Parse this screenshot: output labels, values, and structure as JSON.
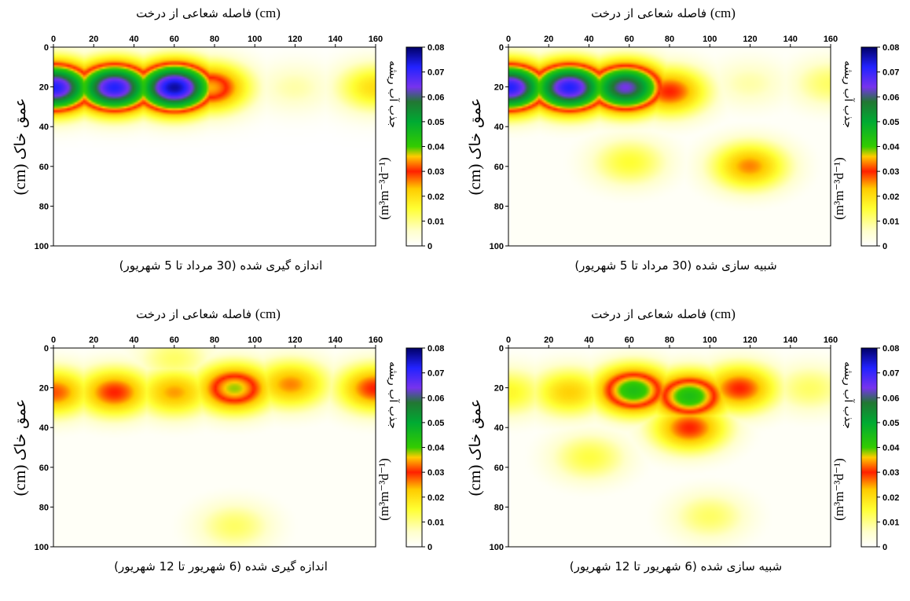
{
  "figure": {
    "colorbar": {
      "title": "جذب آب ریشه",
      "unit": "(m³m⁻³d⁻¹)",
      "ticks": [
        "0",
        "0.01",
        "0.02",
        "0.03",
        "0.04",
        "0.05",
        "0.06",
        "0.07",
        "0.08"
      ],
      "stops": [
        {
          "v": 0.0,
          "c": "#ffffff"
        },
        {
          "v": 0.006,
          "c": "#ffffcc"
        },
        {
          "v": 0.015,
          "c": "#ffff33"
        },
        {
          "v": 0.023,
          "c": "#ffcc00"
        },
        {
          "v": 0.03,
          "c": "#ff2000"
        },
        {
          "v": 0.036,
          "c": "#ffcc00"
        },
        {
          "v": 0.04,
          "c": "#33cc00"
        },
        {
          "v": 0.05,
          "c": "#00aa33"
        },
        {
          "v": 0.058,
          "c": "#227733"
        },
        {
          "v": 0.064,
          "c": "#7733ee"
        },
        {
          "v": 0.072,
          "c": "#2222ff"
        },
        {
          "v": 0.08,
          "c": "#000066"
        }
      ]
    }
  },
  "chart_data": [
    {
      "type": "heatmap",
      "title": "",
      "xlabel": "فاصله شعاعی از درخت",
      "xunit": "(cm)",
      "ylabel": "عمق خاک",
      "yunit": "(cm)",
      "caption": "اندازه گیری شده (30 مرداد تا 5 شهریور)",
      "xlim": [
        0,
        160
      ],
      "ylim": [
        100,
        0
      ],
      "xticks": [
        "0",
        "20",
        "40",
        "60",
        "80",
        "100",
        "120",
        "140",
        "160"
      ],
      "yticks": [
        "0",
        "20",
        "40",
        "60",
        "80",
        "100"
      ],
      "zlim": [
        0,
        0.08
      ],
      "background_value": 0,
      "sources": [
        {
          "x": 0,
          "y": 20,
          "value": 0.072
        },
        {
          "x": 30,
          "y": 20,
          "value": 0.072
        },
        {
          "x": 60,
          "y": 20,
          "value": 0.077
        },
        {
          "x": 78,
          "y": 20,
          "value": 0.035
        },
        {
          "x": 120,
          "y": 20,
          "value": 0.008
        },
        {
          "x": 160,
          "y": 20,
          "value": 0.02
        }
      ]
    },
    {
      "type": "heatmap",
      "title": "",
      "xlabel": "فاصله شعاعی از درخت",
      "xunit": "(cm)",
      "ylabel": "عمق خاک",
      "yunit": "(cm)",
      "caption": "شبیه سازی شده (30 مرداد تا 5 شهریور)",
      "xlim": [
        0,
        160
      ],
      "ylim": [
        100,
        0
      ],
      "xticks": [
        "0",
        "20",
        "40",
        "60",
        "80",
        "100",
        "120",
        "140",
        "160"
      ],
      "yticks": [
        "0",
        "20",
        "40",
        "60",
        "80",
        "100"
      ],
      "zlim": [
        0,
        0.08
      ],
      "background_value": 0.001,
      "sources": [
        {
          "x": 0,
          "y": 20,
          "value": 0.072
        },
        {
          "x": 30,
          "y": 20,
          "value": 0.072
        },
        {
          "x": 58,
          "y": 20,
          "value": 0.064
        },
        {
          "x": 80,
          "y": 22,
          "value": 0.03
        },
        {
          "x": 60,
          "y": 58,
          "value": 0.015
        },
        {
          "x": 120,
          "y": 60,
          "value": 0.026
        },
        {
          "x": 120,
          "y": 18,
          "value": 0.008
        },
        {
          "x": 160,
          "y": 18,
          "value": 0.012
        }
      ]
    },
    {
      "type": "heatmap",
      "title": "",
      "xlabel": "فاصله شعاعی از درخت",
      "xunit": "(cm)",
      "ylabel": "عمق خاک",
      "yunit": "(cm)",
      "caption": "اندازه گیری شده (6 شهریور تا 12 شهریور)",
      "xlim": [
        0,
        160
      ],
      "ylim": [
        100,
        0
      ],
      "xticks": [
        "0",
        "20",
        "40",
        "60",
        "80",
        "100",
        "120",
        "140",
        "160"
      ],
      "yticks": [
        "0",
        "20",
        "40",
        "60",
        "80",
        "100"
      ],
      "zlim": [
        0,
        0.08
      ],
      "background_value": 0.001,
      "sources": [
        {
          "x": 0,
          "y": 22,
          "value": 0.028
        },
        {
          "x": 30,
          "y": 22,
          "value": 0.03
        },
        {
          "x": 60,
          "y": 22,
          "value": 0.025
        },
        {
          "x": 90,
          "y": 20,
          "value": 0.038
        },
        {
          "x": 118,
          "y": 18,
          "value": 0.026
        },
        {
          "x": 160,
          "y": 20,
          "value": 0.03
        },
        {
          "x": 90,
          "y": 90,
          "value": 0.012
        },
        {
          "x": 60,
          "y": 5,
          "value": 0.012
        }
      ]
    },
    {
      "type": "heatmap",
      "title": "",
      "xlabel": "فاصله شعاعی از درخت",
      "xunit": "(cm)",
      "ylabel": "عمق خاک",
      "yunit": "(cm)",
      "caption": "شبیه سازی شده (6 شهریور تا 12 شهریور)",
      "xlim": [
        0,
        160
      ],
      "ylim": [
        100,
        0
      ],
      "xticks": [
        "0",
        "20",
        "40",
        "60",
        "80",
        "100",
        "120",
        "140",
        "160"
      ],
      "yticks": [
        "0",
        "20",
        "40",
        "60",
        "80",
        "100"
      ],
      "zlim": [
        0,
        0.08
      ],
      "background_value": 0.001,
      "sources": [
        {
          "x": 62,
          "y": 21,
          "value": 0.044
        },
        {
          "x": 90,
          "y": 24,
          "value": 0.044
        },
        {
          "x": 115,
          "y": 20,
          "value": 0.03
        },
        {
          "x": 90,
          "y": 40,
          "value": 0.03
        },
        {
          "x": 30,
          "y": 22,
          "value": 0.022
        },
        {
          "x": 0,
          "y": 22,
          "value": 0.016
        },
        {
          "x": 40,
          "y": 55,
          "value": 0.014
        },
        {
          "x": 100,
          "y": 85,
          "value": 0.012
        },
        {
          "x": 150,
          "y": 20,
          "value": 0.012
        }
      ]
    }
  ]
}
